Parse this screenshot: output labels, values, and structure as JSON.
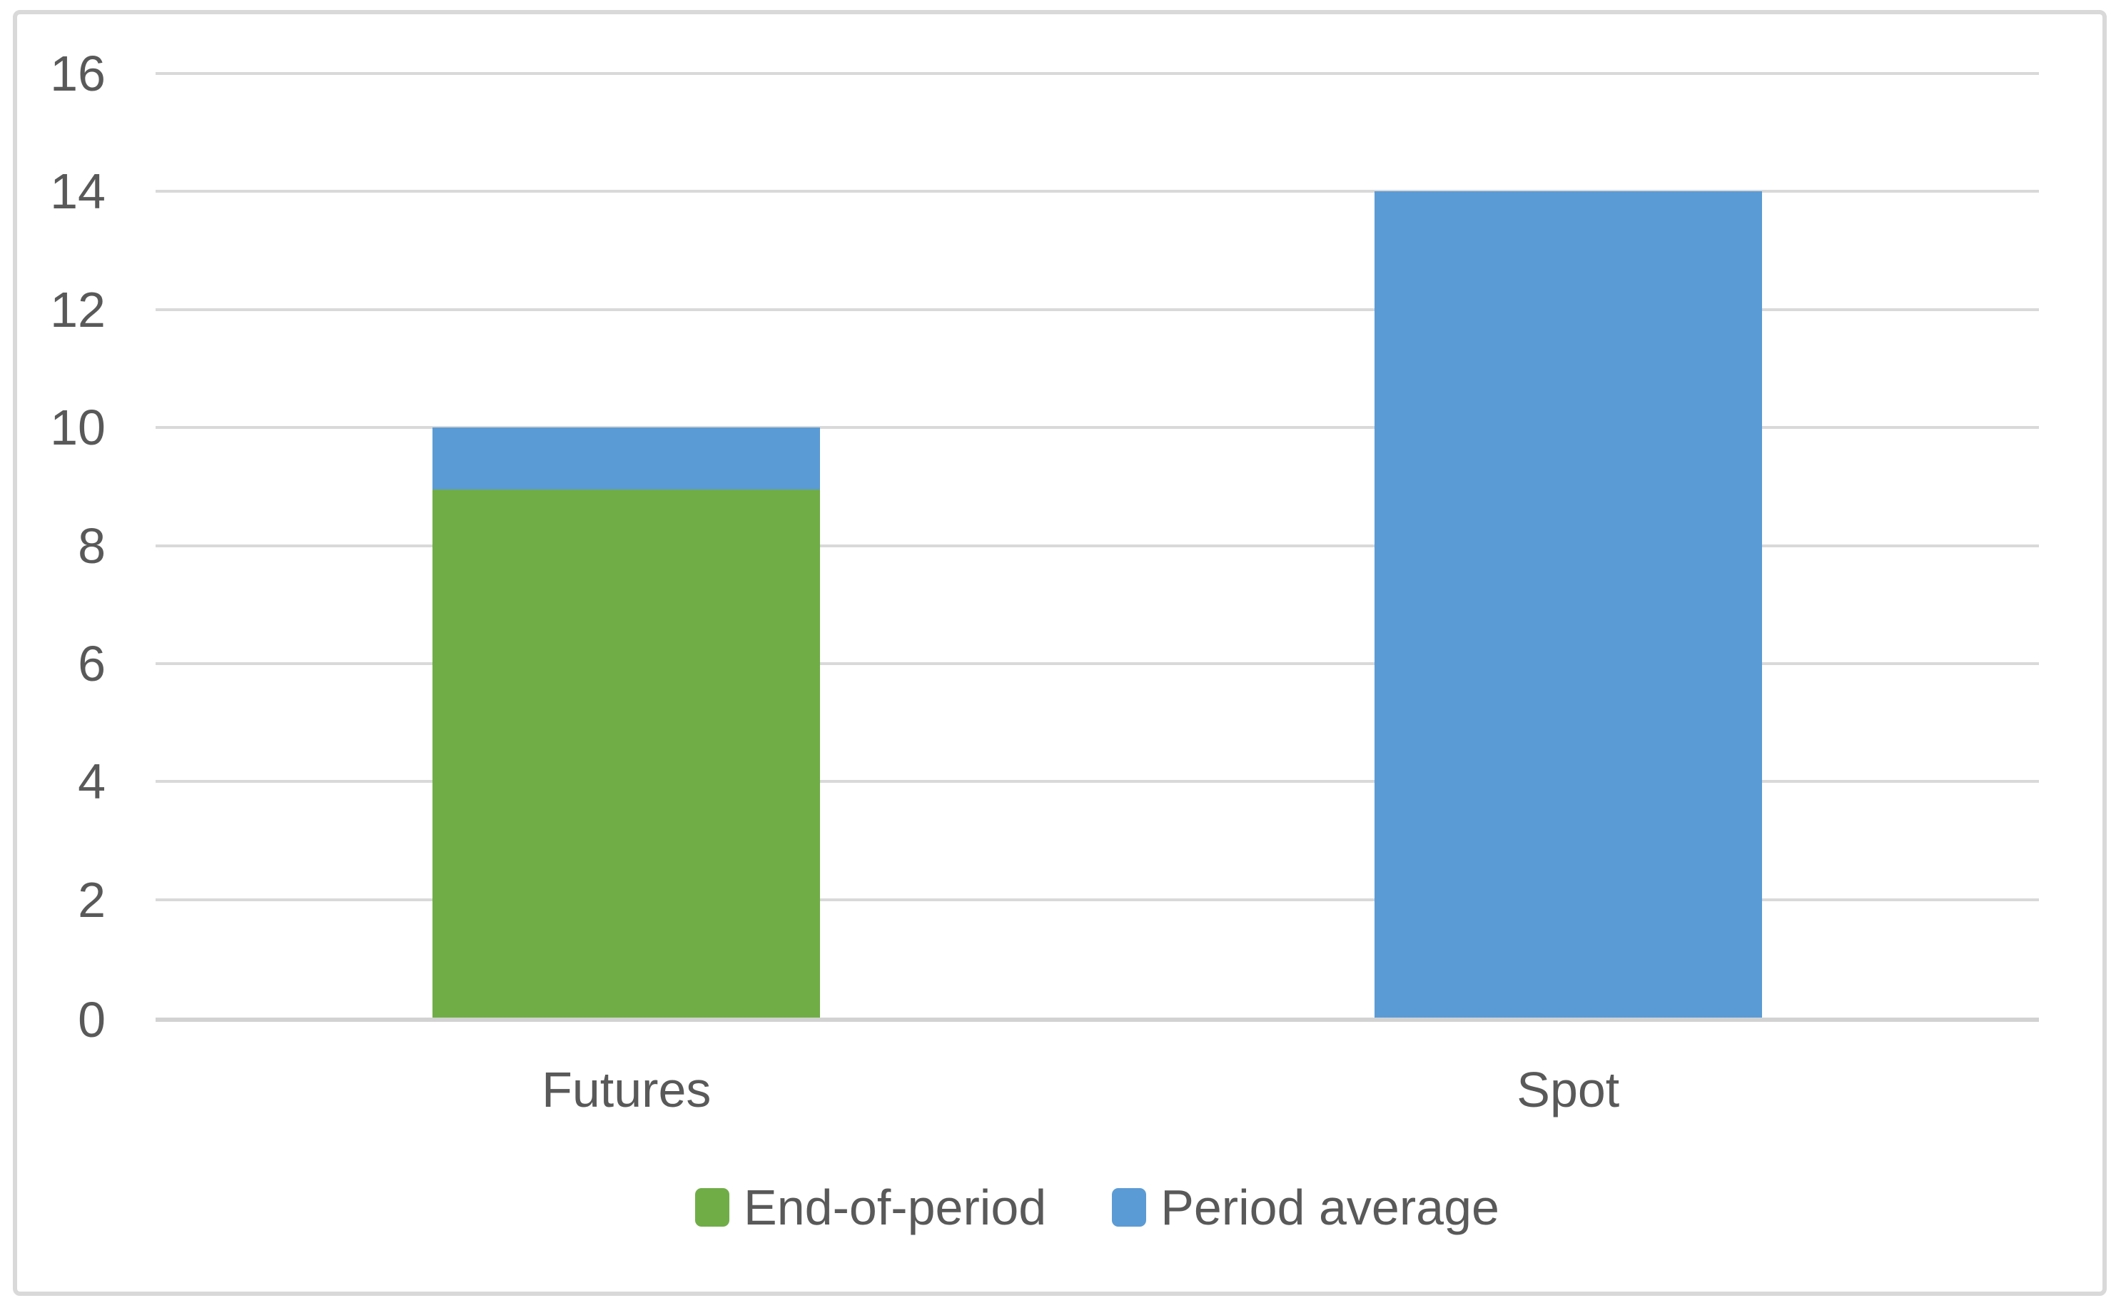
{
  "chart_data": {
    "type": "bar",
    "categories": [
      "Futures",
      "Spot"
    ],
    "series": [
      {
        "name": "End-of-period",
        "color": "#70AD47",
        "values": [
          8.95,
          null
        ]
      },
      {
        "name": "Period average",
        "color": "#5B9BD5",
        "values": [
          10,
          14
        ]
      }
    ],
    "title": "",
    "xlabel": "",
    "ylabel": "",
    "ylim": [
      0,
      16
    ],
    "ytick_step": 2,
    "yticks": [
      0,
      2,
      4,
      6,
      8,
      10,
      12,
      14,
      16
    ],
    "grid": true,
    "bar_style": "overlapped-full",
    "legend_position": "bottom"
  },
  "colors": {
    "background": "#FFFFFF",
    "frame_border": "#D9D9D9",
    "gridline": "#D9D9D9",
    "axis_line": "#D2D2D2",
    "text": "#595959"
  }
}
